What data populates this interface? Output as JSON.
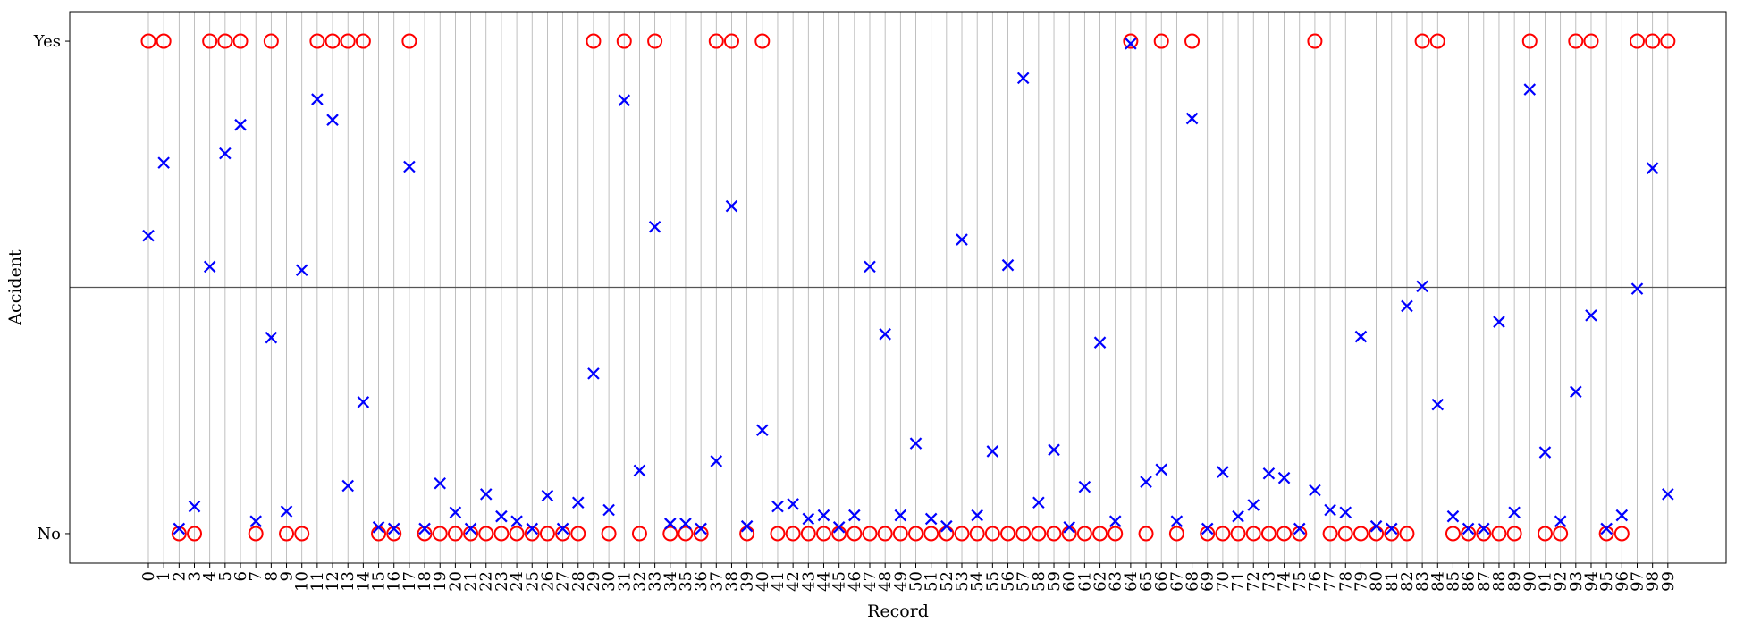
{
  "chart_data": {
    "type": "scatter",
    "xlabel": "Record",
    "ylabel": "Accident",
    "x_categories": [
      "0",
      "1",
      "2",
      "3",
      "4",
      "5",
      "6",
      "7",
      "8",
      "9",
      "10",
      "11",
      "12",
      "13",
      "14",
      "15",
      "16",
      "17",
      "18",
      "19",
      "20",
      "21",
      "22",
      "23",
      "24",
      "25",
      "26",
      "27",
      "28",
      "29",
      "30",
      "31",
      "32",
      "33",
      "34",
      "35",
      "36",
      "37",
      "38",
      "39",
      "40",
      "41",
      "42",
      "43",
      "44",
      "45",
      "46",
      "47",
      "48",
      "49",
      "50",
      "51",
      "52",
      "53",
      "54",
      "55",
      "56",
      "57",
      "58",
      "59",
      "60",
      "61",
      "62",
      "63",
      "64",
      "65",
      "66",
      "67",
      "68",
      "69",
      "70",
      "71",
      "72",
      "73",
      "74",
      "75",
      "76",
      "77",
      "78",
      "79",
      "80",
      "81",
      "82",
      "83",
      "84",
      "85",
      "86",
      "87",
      "88",
      "89",
      "90",
      "91",
      "92",
      "93",
      "94",
      "95",
      "96",
      "97",
      "98",
      "99"
    ],
    "y_ticks": [
      {
        "label": "No",
        "value": 0
      },
      {
        "label": "Yes",
        "value": 1
      }
    ],
    "ylim": [
      -0.06,
      1.06
    ],
    "reference_line": 0.5,
    "grid": "vertical",
    "series": [
      {
        "marker": "circle",
        "color": "#ff0000",
        "values": [
          1,
          1,
          0,
          0,
          1,
          1,
          1,
          0,
          1,
          0,
          0,
          1,
          1,
          1,
          1,
          0,
          0,
          1,
          0,
          0,
          0,
          0,
          0,
          0,
          0,
          0,
          0,
          0,
          0,
          1,
          0,
          1,
          0,
          1,
          0,
          0,
          0,
          1,
          1,
          0,
          1,
          0,
          0,
          0,
          0,
          0,
          0,
          0,
          0,
          0,
          0,
          0,
          0,
          0,
          0,
          0,
          0,
          0,
          0,
          0,
          0,
          0,
          0,
          0,
          1,
          0,
          1,
          0,
          1,
          0,
          0,
          0,
          0,
          0,
          0,
          0,
          1,
          0,
          0,
          0,
          0,
          0,
          0,
          1,
          1,
          0,
          0,
          0,
          0,
          0,
          1,
          0,
          0,
          1,
          1,
          0,
          0,
          1,
          1,
          1
        ]
      },
      {
        "marker": "x",
        "color": "#0000ff",
        "values": [
          0.605,
          0.753,
          0.01,
          0.055,
          0.542,
          0.772,
          0.83,
          0.025,
          0.398,
          0.045,
          0.535,
          0.882,
          0.84,
          0.097,
          0.267,
          0.013,
          0.01,
          0.745,
          0.01,
          0.102,
          0.043,
          0.01,
          0.08,
          0.035,
          0.025,
          0.01,
          0.077,
          0.01,
          0.063,
          0.325,
          0.048,
          0.88,
          0.128,
          0.623,
          0.02,
          0.02,
          0.01,
          0.147,
          0.665,
          0.015,
          0.21,
          0.055,
          0.06,
          0.03,
          0.037,
          0.013,
          0.037,
          0.542,
          0.405,
          0.037,
          0.183,
          0.03,
          0.015,
          0.597,
          0.037,
          0.167,
          0.545,
          0.925,
          0.063,
          0.17,
          0.013,
          0.095,
          0.388,
          0.025,
          0.995,
          0.105,
          0.13,
          0.025,
          0.843,
          0.01,
          0.125,
          0.035,
          0.058,
          0.122,
          0.113,
          0.01,
          0.088,
          0.048,
          0.043,
          0.4,
          0.015,
          0.01,
          0.462,
          0.502,
          0.262,
          0.035,
          0.01,
          0.01,
          0.43,
          0.043,
          0.902,
          0.165,
          0.025,
          0.288,
          0.443,
          0.01,
          0.037,
          0.497,
          0.742,
          0.08
        ]
      }
    ]
  }
}
